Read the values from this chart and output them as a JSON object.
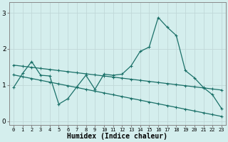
{
  "title": "",
  "xlabel": "Humidex (Indice chaleur)",
  "bg_color": "#d4eeed",
  "plot_bg_color": "#d4eeed",
  "line_color": "#1a7068",
  "grid_color": "#c0d8d8",
  "xlim": [
    -0.5,
    23.5
  ],
  "ylim": [
    -0.1,
    3.3
  ],
  "xticks": [
    0,
    1,
    2,
    3,
    4,
    5,
    6,
    7,
    8,
    9,
    10,
    11,
    12,
    13,
    14,
    15,
    16,
    17,
    18,
    19,
    20,
    21,
    22,
    23
  ],
  "yticks": [
    0,
    1,
    2,
    3
  ],
  "line1_y": [
    0.93,
    1.32,
    1.65,
    1.27,
    1.25,
    0.47,
    0.62,
    0.95,
    1.27,
    0.88,
    1.3,
    1.27,
    1.3,
    1.53,
    1.93,
    2.05,
    2.87,
    2.6,
    2.37,
    1.4,
    1.2,
    0.93,
    0.73,
    0.35
  ],
  "line2_y": [
    1.55,
    1.52,
    1.49,
    1.46,
    1.43,
    1.4,
    1.37,
    1.34,
    1.31,
    1.28,
    1.25,
    1.22,
    1.19,
    1.16,
    1.13,
    1.1,
    1.07,
    1.04,
    1.01,
    0.98,
    0.95,
    0.92,
    0.89,
    0.86
  ],
  "line3_y": [
    1.28,
    1.23,
    1.18,
    1.13,
    1.08,
    1.03,
    0.98,
    0.93,
    0.88,
    0.83,
    0.78,
    0.73,
    0.68,
    0.63,
    0.58,
    0.53,
    0.48,
    0.43,
    0.38,
    0.33,
    0.28,
    0.23,
    0.18,
    0.13
  ],
  "markersize": 3,
  "linewidth": 0.9,
  "xlabel_fontsize": 7,
  "tick_fontsize": 5,
  "ytick_fontsize": 6.5
}
